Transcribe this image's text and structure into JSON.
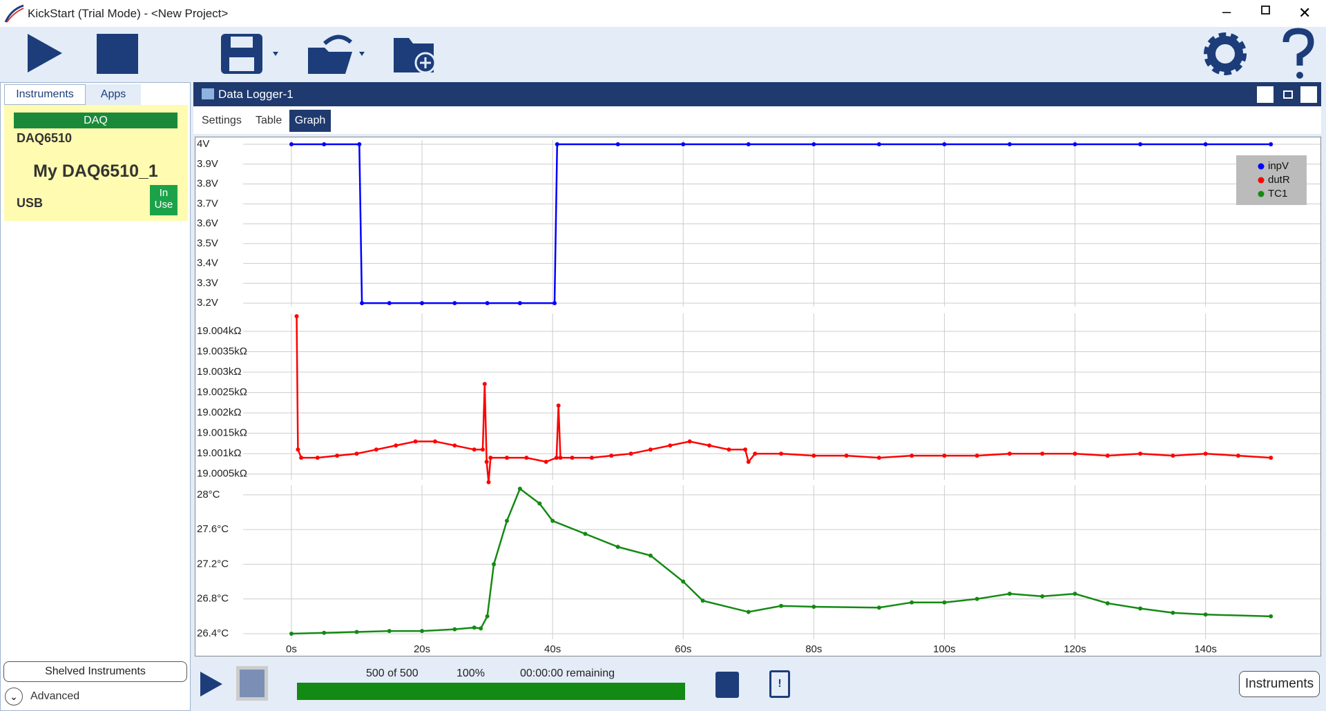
{
  "window": {
    "title": "KickStart (Trial Mode) - <New Project>"
  },
  "sidebar": {
    "tabs": [
      "Instruments",
      "Apps"
    ],
    "card": {
      "header": "DAQ",
      "model": "DAQ6510",
      "name": "My DAQ6510_1",
      "connection": "USB",
      "status": [
        "In",
        "Use"
      ]
    },
    "shelved": "Shelved Instruments",
    "advanced": "Advanced"
  },
  "panel": {
    "title": "Data Logger-1",
    "tabs": [
      "Settings",
      "Table",
      "Graph"
    ]
  },
  "chart_data": [
    {
      "type": "line",
      "legend": "top-right",
      "xlim": [
        -7.4,
        157.6
      ],
      "ylim": [
        3.183,
        4.021
      ],
      "yticks": [
        {
          "value": 3.2,
          "label": "3.2V"
        },
        {
          "value": 3.3,
          "label": "3.3V"
        },
        {
          "value": 3.4,
          "label": "3.4V"
        },
        {
          "value": 3.5,
          "label": "3.5V"
        },
        {
          "value": 3.6,
          "label": "3.6V"
        },
        {
          "value": 3.7,
          "label": "3.7V"
        },
        {
          "value": 3.8,
          "label": "3.8V"
        },
        {
          "value": 3.9,
          "label": "3.9V"
        },
        {
          "value": 4,
          "label": "4V"
        }
      ],
      "x": [
        0,
        5,
        10.4,
        10.8,
        15,
        20,
        25,
        30,
        35,
        40.3,
        40.7,
        50,
        60,
        70,
        80,
        90,
        100,
        110,
        120,
        130,
        140,
        150
      ],
      "series": [
        {
          "name": "inpV",
          "color": "#0000ff",
          "values": [
            4,
            4,
            4,
            3.2,
            3.2,
            3.2,
            3.2,
            3.2,
            3.2,
            3.2,
            4,
            4,
            4,
            4,
            4,
            4,
            4,
            4,
            4,
            4,
            4,
            4
          ]
        }
      ]
    },
    {
      "type": "line",
      "xlim": [
        -7.4,
        157.6
      ],
      "ylim": [
        19.00036,
        19.00444
      ],
      "yticks": [
        {
          "value": 19.0005,
          "label": "19.0005kΩ"
        },
        {
          "value": 19.001,
          "label": "19.001kΩ"
        },
        {
          "value": 19.0015,
          "label": "19.0015kΩ"
        },
        {
          "value": 19.002,
          "label": "19.002kΩ"
        },
        {
          "value": 19.0025,
          "label": "19.0025kΩ"
        },
        {
          "value": 19.003,
          "label": "19.003kΩ"
        },
        {
          "value": 19.0035,
          "label": "19.0035kΩ"
        },
        {
          "value": 19.004,
          "label": "19.004kΩ"
        }
      ],
      "x": [
        0.8,
        1,
        1.5,
        4,
        7,
        10,
        13,
        16,
        19,
        22,
        25,
        28,
        29.3,
        29.6,
        29.9,
        30.2,
        30.5,
        33,
        36,
        39,
        40.6,
        40.9,
        41.2,
        43,
        46,
        49,
        52,
        55,
        58,
        61,
        64,
        67,
        69.5,
        70,
        71,
        75,
        80,
        85,
        90,
        95,
        100,
        105,
        110,
        115,
        120,
        125,
        130,
        135,
        140,
        145,
        150
      ],
      "series": [
        {
          "name": "dutR",
          "color": "#ff0000",
          "values": [
            19.00437,
            19.0011,
            19.0009,
            19.0009,
            19.00095,
            19.001,
            19.0011,
            19.0012,
            19.0013,
            19.0013,
            19.0012,
            19.0011,
            19.0011,
            19.00271,
            19.0008,
            19.0003,
            19.0009,
            19.0009,
            19.0009,
            19.0008,
            19.0009,
            19.00218,
            19.0009,
            19.0009,
            19.0009,
            19.00095,
            19.001,
            19.0011,
            19.0012,
            19.0013,
            19.0012,
            19.0011,
            19.0011,
            19.0008,
            19.001,
            19.001,
            19.00095,
            19.00095,
            19.0009,
            19.00095,
            19.00095,
            19.00095,
            19.001,
            19.001,
            19.001,
            19.00095,
            19.001,
            19.00095,
            19.001,
            19.00095,
            19.0009
          ]
        }
      ]
    },
    {
      "type": "line",
      "xlim": [
        -7.4,
        157.6
      ],
      "ylim": [
        26.336,
        28.11
      ],
      "yticks": [
        {
          "value": 26.4,
          "label": "26.4°C"
        },
        {
          "value": 26.8,
          "label": "26.8°C"
        },
        {
          "value": 27.2,
          "label": "27.2°C"
        },
        {
          "value": 27.6,
          "label": "27.6°C"
        },
        {
          "value": 28,
          "label": "28°C"
        }
      ],
      "xticks": [
        {
          "value": 0,
          "label": "0s"
        },
        {
          "value": 20,
          "label": "20s"
        },
        {
          "value": 40,
          "label": "40s"
        },
        {
          "value": 60,
          "label": "60s"
        },
        {
          "value": 80,
          "label": "80s"
        },
        {
          "value": 100,
          "label": "100s"
        },
        {
          "value": 120,
          "label": "120s"
        },
        {
          "value": 140,
          "label": "140s"
        }
      ],
      "x": [
        0,
        5,
        10,
        15,
        20,
        25,
        28,
        29,
        30,
        31,
        33,
        35,
        38,
        40,
        45,
        50,
        55,
        60,
        63,
        70,
        75,
        80,
        90,
        95,
        100,
        105,
        110,
        115,
        120,
        125,
        130,
        135,
        140,
        150
      ],
      "series": [
        {
          "name": "TC1",
          "color": "#138a13",
          "values": [
            26.4,
            26.41,
            26.42,
            26.43,
            26.43,
            26.45,
            26.47,
            26.46,
            26.6,
            27.2,
            27.7,
            28.07,
            27.9,
            27.7,
            27.55,
            27.4,
            27.3,
            27.0,
            26.78,
            26.65,
            26.72,
            26.71,
            26.7,
            26.76,
            26.76,
            26.8,
            26.86,
            26.83,
            26.86,
            26.75,
            26.69,
            26.64,
            26.62,
            26.6
          ]
        }
      ]
    }
  ],
  "status": {
    "count": "500 of 500",
    "percent": {
      "value": 100,
      "label": "100%"
    },
    "remaining": "00:00:00 remaining",
    "instruments": "Instruments"
  }
}
